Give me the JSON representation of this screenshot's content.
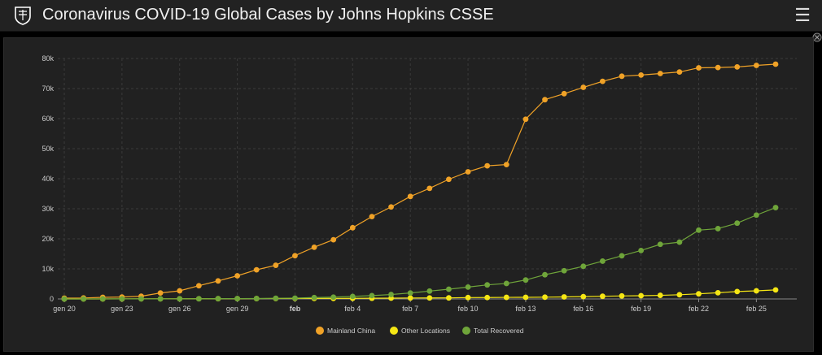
{
  "header": {
    "title": "Coronavirus COVID-19 Global Cases by Johns Hopkins CSSE",
    "menu_icon": "hamburger-icon",
    "logo_icon": "jhu-shield-icon"
  },
  "colors": {
    "background": "#212121",
    "grid": "#3a3a3a",
    "axis_text": "#cccccc"
  },
  "chart_data": {
    "type": "line",
    "x": [
      "gen 20",
      "gen 21",
      "gen 22",
      "gen 23",
      "gen 24",
      "gen 25",
      "gen 26",
      "gen 27",
      "gen 28",
      "gen 29",
      "gen 30",
      "gen 31",
      "feb",
      "feb 2",
      "feb 3",
      "feb 4",
      "feb 5",
      "feb 6",
      "feb 7",
      "feb 8",
      "feb 9",
      "feb 10",
      "feb 11",
      "feb 12",
      "feb 13",
      "feb 14",
      "feb 15",
      "feb 16",
      "feb 17",
      "feb 18",
      "feb 19",
      "feb 20",
      "feb 21",
      "feb 22",
      "feb 23",
      "feb 24",
      "feb 25",
      "feb 26"
    ],
    "xticks": [
      "gen 20",
      "gen 23",
      "gen 26",
      "gen 29",
      "feb",
      "feb 4",
      "feb 7",
      "feb 10",
      "feb 13",
      "feb 16",
      "feb 19",
      "feb 22",
      "feb 25"
    ],
    "yticks": [
      "0",
      "10k",
      "20k",
      "30k",
      "40k",
      "50k",
      "60k",
      "70k",
      "80k"
    ],
    "ylim": [
      0,
      80000
    ],
    "grid": true,
    "legend_position": "bottom",
    "series": [
      {
        "name": "Mainland China",
        "color": "#f0a227",
        "values": [
          278,
          326,
          547,
          639,
          916,
          2000,
          2700,
          4400,
          6000,
          7700,
          9700,
          11200,
          14400,
          17200,
          19700,
          23700,
          27400,
          30600,
          34100,
          36800,
          39800,
          42300,
          44300,
          44700,
          59800,
          66300,
          68300,
          70400,
          72400,
          74100,
          74500,
          75000,
          75500,
          76900,
          77000,
          77200,
          77700,
          78100
        ]
      },
      {
        "name": "Other Locations",
        "color": "#f5e614",
        "values": [
          4,
          6,
          8,
          14,
          25,
          40,
          57,
          64,
          87,
          105,
          118,
          153,
          173,
          183,
          188,
          212,
          227,
          265,
          317,
          343,
          361,
          457,
          476,
          523,
          538,
          595,
          685,
          780,
          896,
          999,
          1076,
          1200,
          1400,
          1700,
          2069,
          2459,
          2699,
          3000
        ]
      },
      {
        "name": "Total Recovered",
        "color": "#6fa53a",
        "values": [
          0,
          0,
          28,
          30,
          36,
          39,
          49,
          58,
          101,
          120,
          135,
          214,
          275,
          463,
          614,
          843,
          1115,
          1476,
          1998,
          2616,
          3244,
          3946,
          4683,
          5150,
          6295,
          8058,
          9395,
          10865,
          12583,
          14352,
          16121,
          18177,
          18890,
          22886,
          23394,
          25227,
          27905,
          30384
        ]
      }
    ]
  }
}
